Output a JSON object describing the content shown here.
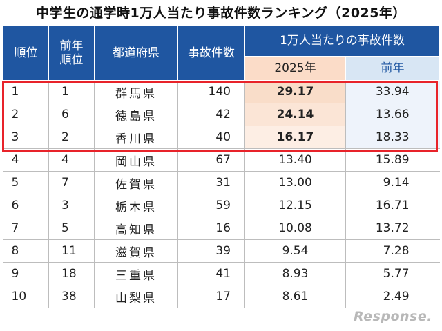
{
  "title": "中学生の通学時1万人当たり事故件数ランキング（2025年）",
  "headers": {
    "rank": "順位",
    "prev_rank": "前年\n順位",
    "prefecture": "都道府県",
    "accidents": "事故件数",
    "rate_group": "1万人当たりの事故件数",
    "rate_current": "2025年",
    "rate_previous": "前年"
  },
  "rows": [
    {
      "rank": "1",
      "prev_rank": "1",
      "prefecture": "群馬県",
      "accidents": "140",
      "rate": "29.17",
      "rate_prev": "33.94"
    },
    {
      "rank": "2",
      "prev_rank": "6",
      "prefecture": "徳島県",
      "accidents": "42",
      "rate": "24.14",
      "rate_prev": "13.66"
    },
    {
      "rank": "3",
      "prev_rank": "2",
      "prefecture": "香川県",
      "accidents": "40",
      "rate": "16.17",
      "rate_prev": "18.33"
    },
    {
      "rank": "4",
      "prev_rank": "4",
      "prefecture": "岡山県",
      "accidents": "67",
      "rate": "13.40",
      "rate_prev": "15.89"
    },
    {
      "rank": "5",
      "prev_rank": "7",
      "prefecture": "佐賀県",
      "accidents": "31",
      "rate": "13.00",
      "rate_prev": "9.14"
    },
    {
      "rank": "6",
      "prev_rank": "3",
      "prefecture": "栃木県",
      "accidents": "59",
      "rate": "12.15",
      "rate_prev": "16.71"
    },
    {
      "rank": "7",
      "prev_rank": "5",
      "prefecture": "高知県",
      "accidents": "16",
      "rate": "10.08",
      "rate_prev": "13.72"
    },
    {
      "rank": "8",
      "prev_rank": "11",
      "prefecture": "滋賀県",
      "accidents": "39",
      "rate": "9.54",
      "rate_prev": "7.28"
    },
    {
      "rank": "9",
      "prev_rank": "18",
      "prefecture": "三重県",
      "accidents": "41",
      "rate": "8.93",
      "rate_prev": "5.77"
    },
    {
      "rank": "10",
      "prev_rank": "38",
      "prefecture": "山梨県",
      "accidents": "17",
      "rate": "8.61",
      "rate_prev": "2.49"
    }
  ],
  "highlight_color": "#e8232a",
  "header_color": "#1f56a1",
  "watermark": "Response.",
  "chart_data": {
    "type": "table",
    "title": "中学生の通学時1万人当たり事故件数ランキング（2025年）",
    "columns": [
      "順位",
      "前年順位",
      "都道府県",
      "事故件数",
      "1万人当たりの事故件数 2025年",
      "1万人当たりの事故件数 前年"
    ],
    "rows": [
      [
        1,
        1,
        "群馬県",
        140,
        29.17,
        33.94
      ],
      [
        2,
        6,
        "徳島県",
        42,
        24.14,
        13.66
      ],
      [
        3,
        2,
        "香川県",
        40,
        16.17,
        18.33
      ],
      [
        4,
        4,
        "岡山県",
        67,
        13.4,
        15.89
      ],
      [
        5,
        7,
        "佐賀県",
        31,
        13.0,
        9.14
      ],
      [
        6,
        3,
        "栃木県",
        59,
        12.15,
        16.71
      ],
      [
        7,
        5,
        "高知県",
        16,
        10.08,
        13.72
      ],
      [
        8,
        11,
        "滋賀県",
        39,
        9.54,
        7.28
      ],
      [
        9,
        18,
        "三重県",
        41,
        8.93,
        5.77
      ],
      [
        10,
        38,
        "山梨県",
        17,
        8.61,
        2.49
      ]
    ],
    "highlighted_rows": [
      1,
      2,
      3
    ]
  }
}
